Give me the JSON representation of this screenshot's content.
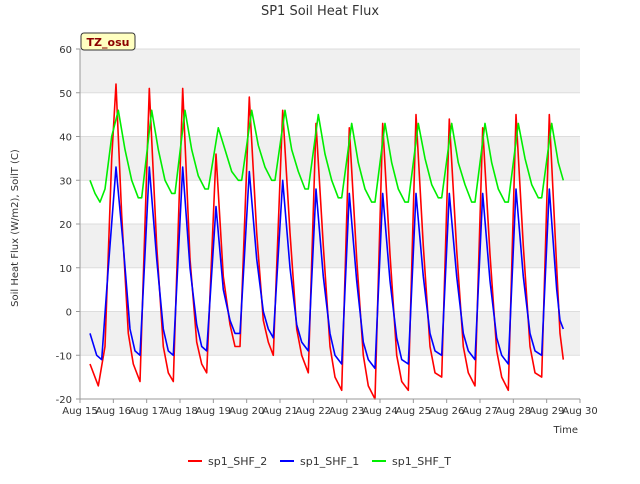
{
  "chart_data": {
    "type": "line",
    "title": "SP1 Soil Heat Flux",
    "xlabel": "Time",
    "ylabel": "Soil Heat Flux (W/m2), SoilT (C)",
    "ylim": [
      -20,
      60
    ],
    "xlim": [
      15,
      30
    ],
    "yticks": [
      -20,
      -10,
      0,
      10,
      20,
      30,
      40,
      50,
      60
    ],
    "xticks": [
      {
        "v": 15,
        "label": "Aug 15"
      },
      {
        "v": 16,
        "label": "Aug 16"
      },
      {
        "v": 17,
        "label": "Aug 17"
      },
      {
        "v": 18,
        "label": "Aug 18"
      },
      {
        "v": 19,
        "label": "Aug 19"
      },
      {
        "v": 20,
        "label": "Aug 20"
      },
      {
        "v": 21,
        "label": "Aug 21"
      },
      {
        "v": 22,
        "label": "Aug 22"
      },
      {
        "v": 23,
        "label": "Aug 23"
      },
      {
        "v": 24,
        "label": "Aug 24"
      },
      {
        "v": 25,
        "label": "Aug 25"
      },
      {
        "v": 26,
        "label": "Aug 26"
      },
      {
        "v": 27,
        "label": "Aug 27"
      },
      {
        "v": 28,
        "label": "Aug 28"
      },
      {
        "v": 29,
        "label": "Aug 29"
      },
      {
        "v": 30,
        "label": "Aug 30"
      }
    ],
    "grid": "horizontal bands",
    "legend_position": "bottom",
    "annotation": "TZ_osu",
    "series": [
      {
        "name": "sp1_SHF_2",
        "color": "#ff0000",
        "points": [
          [
            15.3,
            -12
          ],
          [
            15.55,
            -17
          ],
          [
            15.75,
            -8
          ],
          [
            15.95,
            35
          ],
          [
            16.08,
            52
          ],
          [
            16.25,
            22
          ],
          [
            16.45,
            -5
          ],
          [
            16.6,
            -12
          ],
          [
            16.8,
            -16
          ],
          [
            17.08,
            51
          ],
          [
            17.3,
            15
          ],
          [
            17.5,
            -8
          ],
          [
            17.65,
            -14
          ],
          [
            17.8,
            -16
          ],
          [
            18.08,
            51
          ],
          [
            18.3,
            12
          ],
          [
            18.5,
            -7
          ],
          [
            18.65,
            -12
          ],
          [
            18.8,
            -14
          ],
          [
            19.08,
            36
          ],
          [
            19.3,
            8
          ],
          [
            19.5,
            -3
          ],
          [
            19.65,
            -8
          ],
          [
            19.8,
            -8
          ],
          [
            20.08,
            49
          ],
          [
            20.3,
            18
          ],
          [
            20.5,
            -2
          ],
          [
            20.65,
            -7
          ],
          [
            20.8,
            -10
          ],
          [
            21.08,
            46
          ],
          [
            21.3,
            18
          ],
          [
            21.5,
            -4
          ],
          [
            21.65,
            -10
          ],
          [
            21.85,
            -14
          ],
          [
            22.08,
            43
          ],
          [
            22.3,
            15
          ],
          [
            22.5,
            -8
          ],
          [
            22.65,
            -15
          ],
          [
            22.85,
            -18
          ],
          [
            23.08,
            42
          ],
          [
            23.3,
            12
          ],
          [
            23.5,
            -10
          ],
          [
            23.65,
            -17
          ],
          [
            23.85,
            -20
          ],
          [
            24.08,
            43
          ],
          [
            24.3,
            13
          ],
          [
            24.5,
            -10
          ],
          [
            24.65,
            -16
          ],
          [
            24.85,
            -18
          ],
          [
            25.08,
            45
          ],
          [
            25.3,
            15
          ],
          [
            25.5,
            -8
          ],
          [
            25.65,
            -14
          ],
          [
            25.85,
            -15
          ],
          [
            26.08,
            44
          ],
          [
            26.3,
            14
          ],
          [
            26.5,
            -8
          ],
          [
            26.65,
            -14
          ],
          [
            26.85,
            -17
          ],
          [
            27.08,
            42
          ],
          [
            27.3,
            13
          ],
          [
            27.5,
            -9
          ],
          [
            27.65,
            -15
          ],
          [
            27.85,
            -18
          ],
          [
            28.08,
            45
          ],
          [
            28.3,
            15
          ],
          [
            28.5,
            -8
          ],
          [
            28.65,
            -14
          ],
          [
            28.85,
            -15
          ],
          [
            29.08,
            45
          ],
          [
            29.3,
            10
          ],
          [
            29.4,
            -5
          ],
          [
            29.5,
            -11
          ]
        ]
      },
      {
        "name": "sp1_SHF_1",
        "color": "#0000ff",
        "points": [
          [
            15.3,
            -5
          ],
          [
            15.5,
            -10
          ],
          [
            15.65,
            -11
          ],
          [
            15.85,
            10
          ],
          [
            16.08,
            33
          ],
          [
            16.3,
            15
          ],
          [
            16.5,
            -4
          ],
          [
            16.65,
            -9
          ],
          [
            16.8,
            -10
          ],
          [
            17.08,
            33
          ],
          [
            17.3,
            12
          ],
          [
            17.5,
            -4
          ],
          [
            17.65,
            -9
          ],
          [
            17.8,
            -10
          ],
          [
            18.08,
            33
          ],
          [
            18.3,
            10
          ],
          [
            18.5,
            -3
          ],
          [
            18.65,
            -8
          ],
          [
            18.8,
            -9
          ],
          [
            19.08,
            24
          ],
          [
            19.3,
            5
          ],
          [
            19.5,
            -2
          ],
          [
            19.65,
            -5
          ],
          [
            19.8,
            -5
          ],
          [
            20.08,
            32
          ],
          [
            20.3,
            12
          ],
          [
            20.5,
            0
          ],
          [
            20.65,
            -4
          ],
          [
            20.8,
            -6
          ],
          [
            21.08,
            30
          ],
          [
            21.3,
            10
          ],
          [
            21.5,
            -3
          ],
          [
            21.65,
            -7
          ],
          [
            21.85,
            -9
          ],
          [
            22.08,
            28
          ],
          [
            22.3,
            8
          ],
          [
            22.5,
            -5
          ],
          [
            22.65,
            -10
          ],
          [
            22.85,
            -12
          ],
          [
            23.08,
            27
          ],
          [
            23.3,
            7
          ],
          [
            23.5,
            -7
          ],
          [
            23.65,
            -11
          ],
          [
            23.85,
            -13
          ],
          [
            24.08,
            27
          ],
          [
            24.3,
            7
          ],
          [
            24.5,
            -6
          ],
          [
            24.65,
            -11
          ],
          [
            24.85,
            -12
          ],
          [
            25.08,
            27
          ],
          [
            25.3,
            8
          ],
          [
            25.5,
            -5
          ],
          [
            25.65,
            -9
          ],
          [
            25.85,
            -10
          ],
          [
            26.08,
            27
          ],
          [
            26.3,
            8
          ],
          [
            26.5,
            -5
          ],
          [
            26.65,
            -9
          ],
          [
            26.85,
            -11
          ],
          [
            27.08,
            27
          ],
          [
            27.3,
            7
          ],
          [
            27.5,
            -6
          ],
          [
            27.65,
            -10
          ],
          [
            27.85,
            -12
          ],
          [
            28.08,
            28
          ],
          [
            28.3,
            8
          ],
          [
            28.5,
            -5
          ],
          [
            28.65,
            -9
          ],
          [
            28.85,
            -10
          ],
          [
            29.08,
            28
          ],
          [
            29.3,
            5
          ],
          [
            29.4,
            -2
          ],
          [
            29.5,
            -4
          ]
        ]
      },
      {
        "name": "sp1_SHF_T",
        "color": "#00ee00",
        "points": [
          [
            15.3,
            30
          ],
          [
            15.45,
            27
          ],
          [
            15.6,
            25
          ],
          [
            15.75,
            28
          ],
          [
            15.95,
            40
          ],
          [
            16.15,
            46
          ],
          [
            16.35,
            37
          ],
          [
            16.55,
            30
          ],
          [
            16.75,
            26
          ],
          [
            16.85,
            26
          ],
          [
            17.15,
            46
          ],
          [
            17.35,
            37
          ],
          [
            17.55,
            30
          ],
          [
            17.75,
            27
          ],
          [
            17.85,
            27
          ],
          [
            18.15,
            46
          ],
          [
            18.35,
            37
          ],
          [
            18.55,
            31
          ],
          [
            18.75,
            28
          ],
          [
            18.85,
            28
          ],
          [
            19.15,
            42
          ],
          [
            19.35,
            37
          ],
          [
            19.55,
            32
          ],
          [
            19.75,
            30
          ],
          [
            19.85,
            30
          ],
          [
            20.15,
            46
          ],
          [
            20.35,
            38
          ],
          [
            20.55,
            33
          ],
          [
            20.75,
            30
          ],
          [
            20.85,
            30
          ],
          [
            21.15,
            46
          ],
          [
            21.35,
            37
          ],
          [
            21.55,
            32
          ],
          [
            21.75,
            28
          ],
          [
            21.85,
            28
          ],
          [
            22.15,
            45
          ],
          [
            22.35,
            36
          ],
          [
            22.55,
            30
          ],
          [
            22.75,
            26
          ],
          [
            22.85,
            26
          ],
          [
            23.15,
            43
          ],
          [
            23.35,
            34
          ],
          [
            23.55,
            28
          ],
          [
            23.75,
            25
          ],
          [
            23.85,
            25
          ],
          [
            24.15,
            43
          ],
          [
            24.35,
            34
          ],
          [
            24.55,
            28
          ],
          [
            24.75,
            25
          ],
          [
            24.85,
            25
          ],
          [
            25.15,
            43
          ],
          [
            25.35,
            35
          ],
          [
            25.55,
            29
          ],
          [
            25.75,
            26
          ],
          [
            25.85,
            26
          ],
          [
            26.15,
            43
          ],
          [
            26.35,
            34
          ],
          [
            26.55,
            29
          ],
          [
            26.75,
            25
          ],
          [
            26.85,
            25
          ],
          [
            27.15,
            43
          ],
          [
            27.35,
            34
          ],
          [
            27.55,
            28
          ],
          [
            27.75,
            25
          ],
          [
            27.85,
            25
          ],
          [
            28.15,
            43
          ],
          [
            28.35,
            35
          ],
          [
            28.55,
            29
          ],
          [
            28.75,
            26
          ],
          [
            28.85,
            26
          ],
          [
            29.15,
            43
          ],
          [
            29.35,
            34
          ],
          [
            29.5,
            30
          ]
        ]
      }
    ]
  }
}
